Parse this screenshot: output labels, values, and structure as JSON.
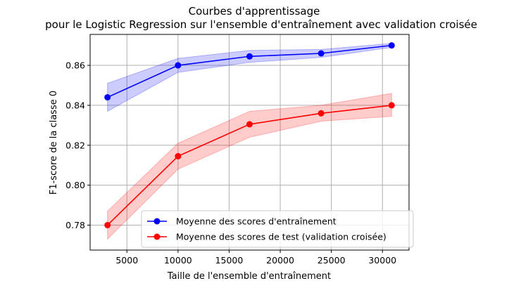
{
  "chart_data": {
    "type": "line",
    "title": "Courbes d'apprentissage",
    "subtitle": "pour le Logistic Regression sur l'ensemble d'entraînement avec validation croisée",
    "xlabel": "Taille de l'ensemble d'entraînement",
    "ylabel": "F1-score de la classe 0",
    "xlim": [
      1400,
      32600
    ],
    "ylim": [
      0.7675,
      0.8755
    ],
    "xticks": [
      5000,
      10000,
      15000,
      20000,
      25000,
      30000
    ],
    "yticks": [
      0.78,
      0.8,
      0.82,
      0.84,
      0.86
    ],
    "ytick_labels": [
      "0.78",
      "0.80",
      "0.82",
      "0.84",
      "0.86"
    ],
    "grid": true,
    "legend_position": "lower-right",
    "x": [
      3100,
      10000,
      17000,
      24000,
      30900
    ],
    "series": [
      {
        "name": "Moyenne des scores d'entraînement",
        "color": "#0000ff",
        "band_color": "#0000ff",
        "values": [
          0.844,
          0.86,
          0.8645,
          0.866,
          0.87
        ],
        "lower": [
          0.837,
          0.8565,
          0.8615,
          0.864,
          0.869
        ],
        "upper": [
          0.851,
          0.8635,
          0.8675,
          0.868,
          0.871
        ]
      },
      {
        "name": "Moyenne des scores de test (validation croisée)",
        "color": "#ff0000",
        "band_color": "#ff0000",
        "values": [
          0.78,
          0.8145,
          0.8305,
          0.836,
          0.84
        ],
        "lower": [
          0.773,
          0.808,
          0.824,
          0.832,
          0.8345
        ],
        "upper": [
          0.787,
          0.821,
          0.837,
          0.84,
          0.846
        ]
      }
    ]
  }
}
